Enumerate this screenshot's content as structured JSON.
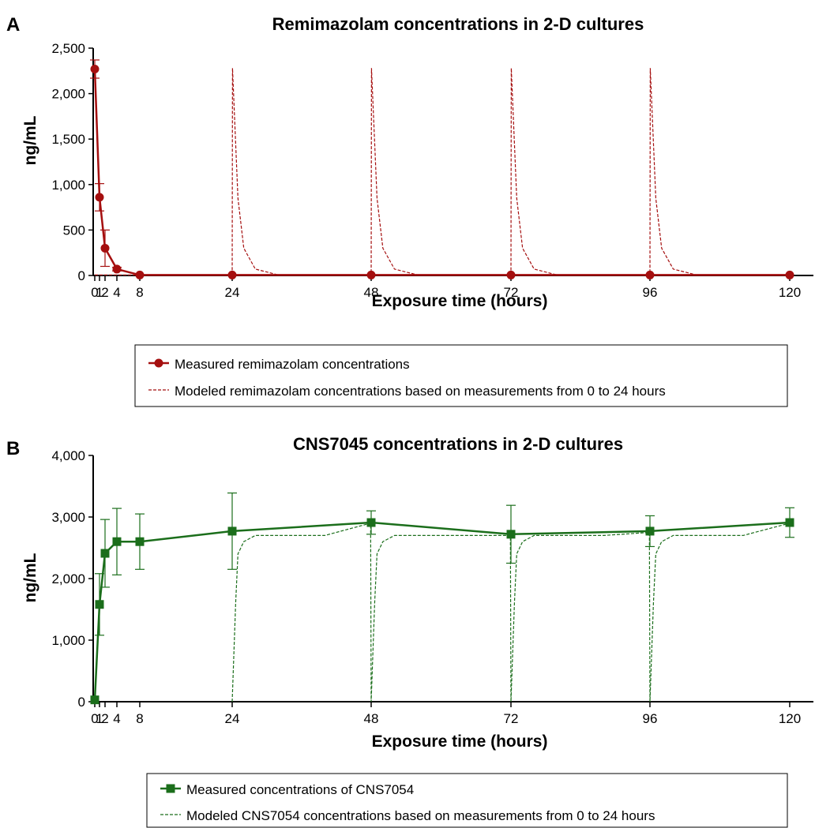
{
  "chart_data": [
    {
      "panel_label": "A",
      "type": "line",
      "title": "Remimazolam concentrations in 2-D cultures",
      "xlabel": "Exposure time (hours)",
      "ylabel": "ng/mL",
      "xticks": [
        0,
        1,
        2,
        4,
        8,
        24,
        48,
        72,
        96,
        120
      ],
      "xtick_labels": [
        "0",
        "1",
        "2",
        "4",
        "8",
        "24",
        "48",
        "72",
        "96",
        "120"
      ],
      "yticks": [
        0,
        500,
        1000,
        1500,
        2000,
        2500
      ],
      "ytick_labels": [
        "0",
        "500",
        "1,000",
        "1,500",
        "2,000",
        "2,500"
      ],
      "ylim": [
        0,
        2500
      ],
      "xlim": [
        0,
        124
      ],
      "legend_position": "bottom",
      "color": "#a50f0f",
      "series": [
        {
          "name": "Measured remimazolam concentrations",
          "style": "solid-marker-circle",
          "x": [
            0,
            1,
            2,
            4,
            8,
            24,
            48,
            72,
            96,
            120
          ],
          "y": [
            2270,
            860,
            300,
            70,
            5,
            5,
            5,
            5,
            5,
            5
          ],
          "err": [
            100,
            150,
            200,
            20,
            0,
            0,
            0,
            0,
            0,
            0
          ]
        },
        {
          "name": "Modeled remimazolam concentrations based on measurements from 0 to 24 hours",
          "style": "dashed",
          "x": [
            0,
            24,
            24.05,
            25,
            26,
            28,
            32,
            48,
            48.05,
            49,
            50,
            52,
            56,
            72,
            72.05,
            73,
            74,
            76,
            80,
            96,
            96.05,
            97,
            98,
            100,
            104,
            120
          ],
          "y": [
            5,
            5,
            2280,
            850,
            300,
            70,
            5,
            5,
            2280,
            850,
            300,
            70,
            5,
            5,
            2280,
            850,
            300,
            70,
            5,
            5,
            2280,
            850,
            300,
            70,
            5,
            5
          ]
        }
      ]
    },
    {
      "panel_label": "B",
      "type": "line",
      "title": "CNS7045 concentrations in 2-D cultures",
      "xlabel": "Exposure time (hours)",
      "ylabel": "ng/mL",
      "xticks": [
        0,
        1,
        2,
        4,
        8,
        24,
        48,
        72,
        96,
        120
      ],
      "xtick_labels": [
        "0",
        "1",
        "2",
        "4",
        "8",
        "24",
        "48",
        "72",
        "96",
        "120"
      ],
      "yticks": [
        0,
        1000,
        2000,
        3000,
        4000
      ],
      "ytick_labels": [
        "0",
        "1,000",
        "2,000",
        "3,000",
        "4,000"
      ],
      "ylim": [
        0,
        4000
      ],
      "xlim": [
        0,
        124
      ],
      "legend_position": "bottom",
      "color": "#1b6e1b",
      "series": [
        {
          "name": "Measured concentrations of CNS7054",
          "style": "solid-marker-square",
          "x": [
            0,
            1,
            2,
            4,
            8,
            24,
            48,
            72,
            96,
            120
          ],
          "y": [
            30,
            1580,
            2410,
            2600,
            2600,
            2770,
            2910,
            2720,
            2770,
            2910
          ],
          "err": [
            0,
            500,
            550,
            540,
            450,
            620,
            190,
            470,
            250,
            240
          ]
        },
        {
          "name": "Modeled CNS7054 concentrations based on measurements from 0 to 24 hours",
          "style": "dashed",
          "x": [
            24,
            24.6,
            25,
            26,
            28,
            32,
            40,
            47.9,
            48,
            48.6,
            49,
            50,
            52,
            56,
            64,
            71.9,
            72,
            72.6,
            73,
            74,
            76,
            80,
            88,
            95.9,
            96,
            96.6,
            97,
            98,
            100,
            104,
            112,
            120
          ],
          "y": [
            0,
            1600,
            2400,
            2600,
            2700,
            2700,
            2700,
            2900,
            0,
            1600,
            2400,
            2600,
            2700,
            2700,
            2700,
            2700,
            0,
            1600,
            2400,
            2600,
            2700,
            2700,
            2700,
            2750,
            0,
            1600,
            2400,
            2600,
            2700,
            2700,
            2700,
            2900
          ]
        }
      ]
    }
  ]
}
